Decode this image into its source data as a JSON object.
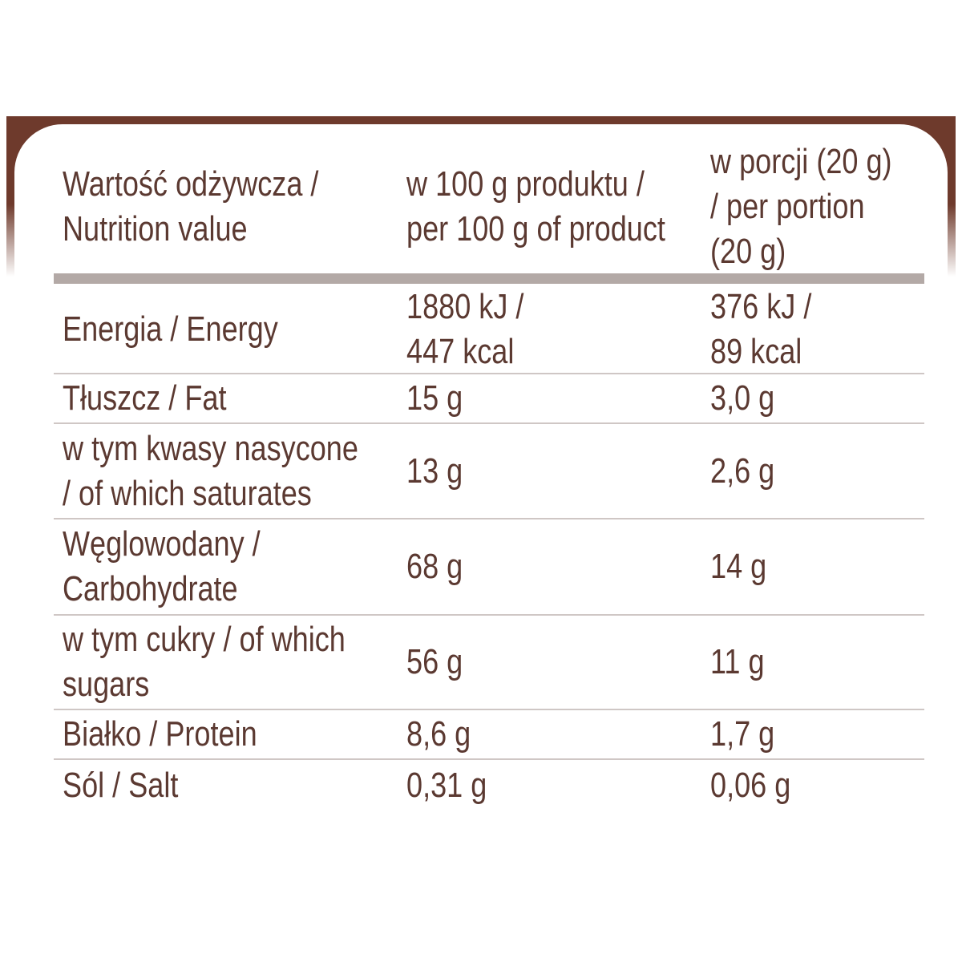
{
  "table": {
    "header": [
      [
        "Wartość odżywcza /",
        "Nutrition value"
      ],
      [
        "w 100 g produktu /",
        "per 100 g of product"
      ],
      [
        "w porcji (20 g)",
        "/ per portion",
        "(20 g)"
      ]
    ],
    "rows": [
      [
        [
          "Energia / Energy"
        ],
        [
          "1880 kJ /",
          "447 kcal"
        ],
        [
          "376 kJ /",
          "89 kcal"
        ]
      ],
      [
        [
          "Tłuszcz / Fat"
        ],
        [
          "15 g"
        ],
        [
          "3,0 g"
        ]
      ],
      [
        [
          "w tym kwasy nasycone",
          "/ of which saturates"
        ],
        [
          "13 g"
        ],
        [
          "2,6 g"
        ]
      ],
      [
        [
          "Węglowodany /",
          "Carbohydrate"
        ],
        [
          "68 g"
        ],
        [
          "14 g"
        ]
      ],
      [
        [
          "w tym cukry / of which",
          "sugars"
        ],
        [
          "56 g"
        ],
        [
          "11 g"
        ]
      ],
      [
        [
          "Białko / Protein"
        ],
        [
          "8,6 g"
        ],
        [
          "1,7 g"
        ]
      ],
      [
        [
          "Sól / Salt"
        ],
        [
          "0,31 g"
        ],
        [
          "0,06 g"
        ]
      ]
    ]
  }
}
